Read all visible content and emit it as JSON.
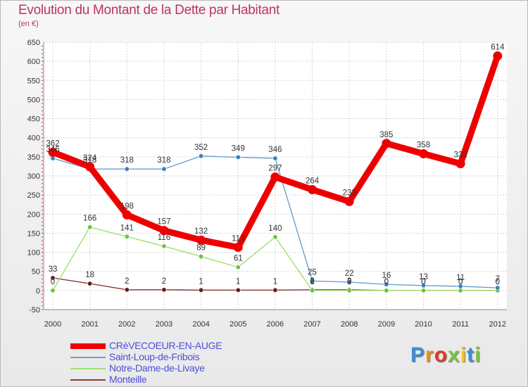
{
  "chart_data": {
    "type": "line",
    "title": "Evolution du Montant de la Dette par Habitant",
    "subtitle": "(en €)",
    "xlabel": "",
    "ylabel": "",
    "ylim": [
      -50,
      650
    ],
    "yticks": [
      -50,
      0,
      50,
      100,
      150,
      200,
      250,
      300,
      350,
      400,
      450,
      500,
      550,
      600,
      650
    ],
    "grid": true,
    "categories": [
      "2000",
      "2001",
      "2002",
      "2003",
      "2004",
      "2005",
      "2006",
      "2007",
      "2008",
      "2009",
      "2010",
      "2011",
      "2012"
    ],
    "series": [
      {
        "name": "CRèVECOEUR-EN-AUGE",
        "color": "#ee0000",
        "marker_color": "#ee0000",
        "style": "thick",
        "values": [
          362,
          324,
          198,
          157,
          132,
          113,
          297,
          264,
          233,
          385,
          358,
          332,
          614
        ],
        "labels": [
          "362",
          "324",
          "198",
          "157",
          "132",
          "113",
          "297",
          "264",
          "233",
          "385",
          "358",
          "332",
          "614"
        ]
      },
      {
        "name": "Saint-Loup-de-Fribois",
        "color": "#6e9fd0",
        "marker_color": "#3a7fc4",
        "style": "thin",
        "values": [
          346,
          318,
          318,
          318,
          352,
          349,
          346,
          25,
          22,
          16,
          13,
          11,
          7
        ],
        "labels": [
          "346",
          "318",
          "318",
          "318",
          "352",
          "349",
          "346",
          "25",
          "22",
          "16",
          "13",
          "11",
          "7"
        ]
      },
      {
        "name": "Notre-Dame-de-Livaye",
        "color": "#9ee06e",
        "marker_color": "#6cc43c",
        "style": "thin",
        "values": [
          0,
          166,
          141,
          116,
          89,
          61,
          140,
          0,
          0,
          0,
          0,
          0,
          0
        ],
        "labels": [
          "0",
          "166",
          "141",
          "116",
          "89",
          "61",
          "140",
          "0",
          "0",
          "0",
          "0",
          "0",
          "0"
        ]
      },
      {
        "name": "Monteille",
        "color": "#8a3a3a",
        "marker_color": "#6a1c1c",
        "style": "thin",
        "values": [
          33,
          18,
          2,
          2,
          1,
          1,
          1,
          2,
          2,
          0,
          0,
          0,
          0
        ],
        "labels": [
          "33",
          "18",
          "2",
          "2",
          "1",
          "1",
          "1",
          "2",
          "2",
          "0",
          "0",
          "0",
          "0"
        ]
      }
    ]
  },
  "logo": {
    "letters": [
      "P",
      "r",
      "o",
      "x",
      "i",
      "t",
      "i"
    ],
    "colors": [
      "#3b8fd6",
      "#f28a1e",
      "#e23a2a",
      "#7cc242",
      "#f5c518",
      "#3b8fd6",
      "#7cc242"
    ]
  }
}
